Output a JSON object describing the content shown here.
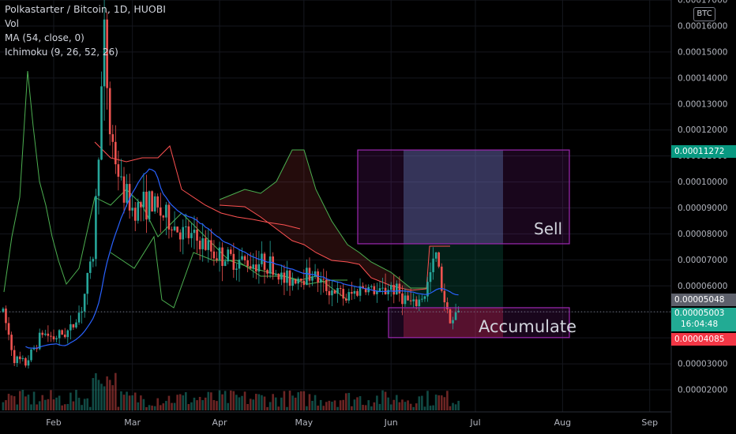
{
  "header": {
    "title": "Polkastarter / Bitcoin, 1D, HUOBI",
    "indicators": [
      "Vol",
      "MA (54, close, 0)",
      "Ichimoku (9, 26, 52, 26)"
    ]
  },
  "currency_badge": "BTC",
  "colors": {
    "background": "#000000",
    "candle_up": "#26a69a",
    "candle_down": "#ef5350",
    "ma": "#2962ff",
    "ichimoku_green": "#4caf50",
    "ichimoku_red": "#ff5252",
    "zone_border": "#9c27b0",
    "axis_text": "#b2b5be"
  },
  "price_labels": [
    {
      "value": "0.00011272",
      "bg": "#089981"
    },
    {
      "value": "0.00005048",
      "bg": "#5d606b"
    },
    {
      "value": "0.00005003",
      "bg": "#22ab94",
      "extra": "16:04:48"
    },
    {
      "value": "0.00004085",
      "bg": "#f23645"
    }
  ],
  "chart_data": {
    "type": "candlestick",
    "title": "Polkastarter / Bitcoin, 1D, HUOBI",
    "exchange": "HUOBI",
    "interval": "1D",
    "x_tick_labels": [
      "Feb",
      "Mar",
      "Apr",
      "May",
      "Jun",
      "Jul",
      "Aug",
      "Sep"
    ],
    "y_tick_labels": [
      "0.00002000",
      "0.00003000",
      "0.00004000",
      "0.00005000",
      "0.00006000",
      "0.00007000",
      "0.00008000",
      "0.00009000",
      "0.00010000",
      "0.00011000",
      "0.00012000",
      "0.00013000",
      "0.00014000",
      "0.00015000",
      "0.00016000",
      "0.00017000"
    ],
    "ylim": [
      1.18e-05,
      0.000172
    ],
    "last_price": 5.003e-05,
    "countdown": "16:04:48",
    "zones": [
      {
        "label": "Sell",
        "low": 7.62e-05,
        "high": 0.0001123
      },
      {
        "label": "Accumulate",
        "low": 4.01e-05,
        "high": 5.16e-05
      }
    ],
    "indicators": [
      "Vol",
      "MA (54, close, 0)",
      "Ichimoku (9, 26, 52, 26)"
    ]
  }
}
